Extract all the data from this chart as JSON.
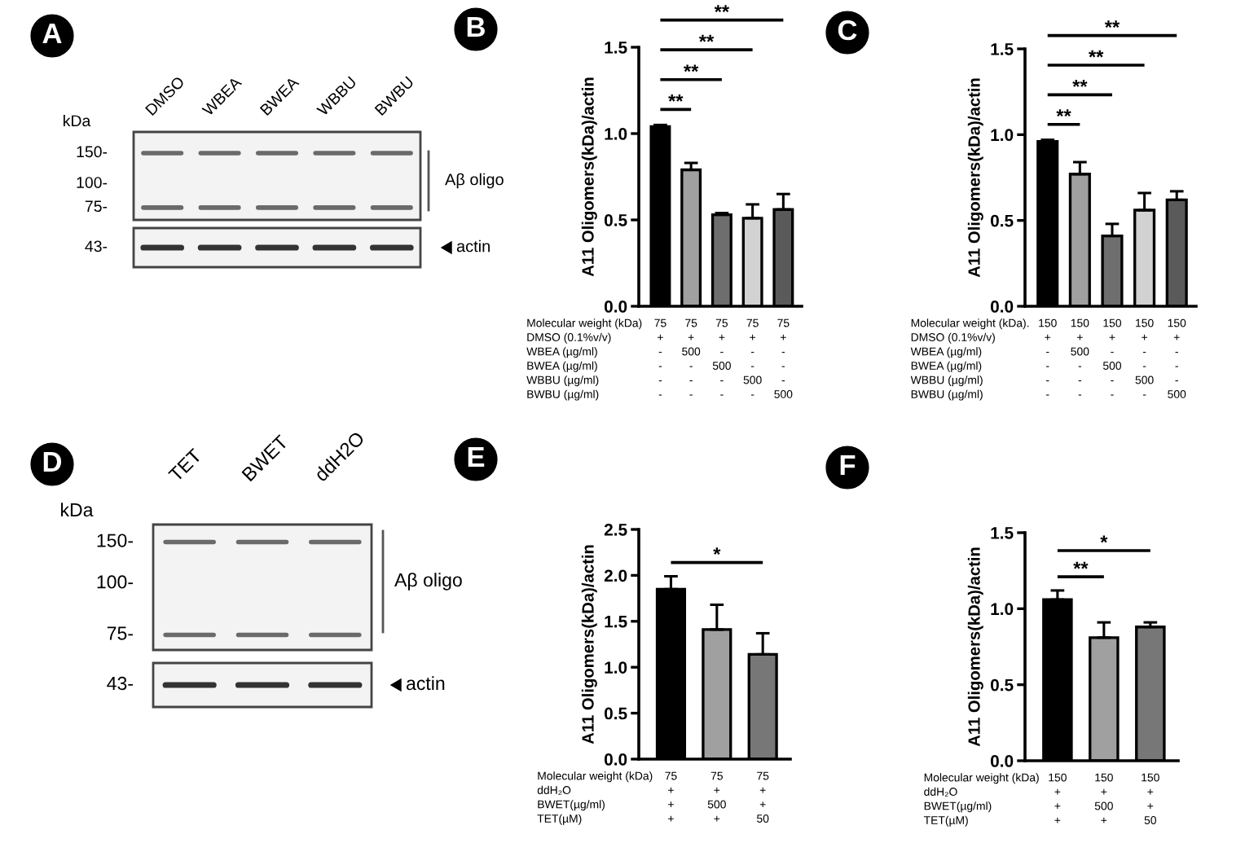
{
  "chart_data": [
    {
      "type": "other",
      "title": "A",
      "categories": [
        "DMSO",
        "WBEA",
        "BWEA",
        "WBBU",
        "BWBU"
      ],
      "annotations": [
        "kDa",
        "150-",
        "100-",
        "75-",
        "43-",
        "Aβ oligo",
        "actin"
      ]
    },
    {
      "type": "bar",
      "title": "B",
      "ylabel": "A11 Oligomers(kDa)/actin",
      "xlabel": "Molecular weight (kDa)\nDMSO (0.1%v/v)\nWBEA (µg/ml)\nBWEA (µg/ml)\nWBBU (µg/ml)\nBWBU (µg/ml)",
      "categories": [
        "75\n+\n-\n-\n-\n-",
        "75\n+\n500\n-\n-\n-",
        "75\n+\n-\n500\n-\n-",
        "75\n+\n-\n-\n500\n-",
        "75\n+\n-\n-\n-\n500"
      ],
      "values": [
        1.04,
        0.79,
        0.53,
        0.51,
        0.56
      ],
      "colors": [
        "#000000",
        "#a0a0a0",
        "#6e6e6e",
        "#d2d2d2",
        "#5a5a5a"
      ],
      "errors": [
        [
          1.04,
          1.05
        ],
        [
          0.79,
          0.83
        ],
        [
          0.53,
          0.54
        ],
        [
          0.51,
          0.59
        ],
        [
          0.56,
          0.65
        ]
      ],
      "ylim": [
        0,
        1.5
      ],
      "yticks": [
        {
          "value": 0,
          "label": "0.0"
        },
        0.5,
        {
          "value": 1,
          "label": "1.0"
        },
        1.5
      ],
      "annotations": [
        "**",
        "**",
        "**",
        "**"
      ]
    },
    {
      "type": "bar",
      "title": "C",
      "ylabel": "A11 Oligomers(kDa)/actin",
      "xlabel": "Molecular weight (kDa).\nDMSO (0.1%v/v)\nWBEA (µg/ml)\nBWEA (µg/ml)\nWBBU (µg/ml)\nBWBU (µg/ml)",
      "categories": [
        "150\n+\n-\n-\n-\n-",
        "150\n+\n500\n-\n-\n-",
        "150\n+\n-\n500\n-\n-",
        "150\n+\n-\n-\n500\n-",
        "150\n+\n-\n-\n-\n500"
      ],
      "values": [
        0.96,
        0.77,
        0.41,
        0.56,
        0.62
      ],
      "colors": [
        "#000000",
        "#a0a0a0",
        "#6e6e6e",
        "#d2d2d2",
        "#5a5a5a"
      ],
      "errors": [
        [
          0.96,
          0.97
        ],
        [
          0.77,
          0.84
        ],
        [
          0.41,
          0.48
        ],
        [
          0.56,
          0.66
        ],
        [
          0.62,
          0.67
        ]
      ],
      "ylim": [
        0,
        1.5
      ],
      "yticks": [
        {
          "value": 0,
          "label": "0.0"
        },
        0.5,
        {
          "value": 1,
          "label": "1.0"
        },
        1.5
      ],
      "annotations": [
        "**",
        "**",
        "**",
        "**"
      ]
    },
    {
      "type": "other",
      "title": "D",
      "categories": [
        "TET",
        "BWET",
        "ddH2O"
      ],
      "annotations": [
        "kDa",
        "150-",
        "100-",
        "75-",
        "43-",
        "Aβ oligo",
        "actin"
      ]
    },
    {
      "type": "bar",
      "title": "E",
      "ylabel": "A11 Oligomers(kDa)/actin",
      "xlabel": "Molecular weight (kDa)\nddH₂O\nBWET(µg/ml)\nTET(µM)",
      "categories": [
        "75\n+\n+\n+",
        "75\n+\n500\n+",
        "75\n+\n+\n50"
      ],
      "values": [
        1.85,
        1.41,
        1.14
      ],
      "colors": [
        "#000000",
        "#a0a0a0",
        "#777777"
      ],
      "errors": [
        [
          1.85,
          1.99
        ],
        [
          1.41,
          1.68
        ],
        [
          1.14,
          1.37
        ]
      ],
      "ylim": [
        0,
        2.5
      ],
      "yticks": [
        {
          "value": 0,
          "label": "0.0"
        },
        0.5,
        {
          "value": 1,
          "label": "1.0"
        },
        1.5,
        {
          "value": 2,
          "label": "2.0"
        },
        2.5
      ],
      "annotations": [
        "*"
      ]
    },
    {
      "type": "bar",
      "title": "F",
      "ylabel": "A11 Oligomers(kDa)/actin",
      "xlabel": "Molecular weight (kDa)\nddH₂O\nBWET(µg/ml)\nTET(µM)",
      "categories": [
        "150\n+\n+\n+",
        "150\n+\n500\n+",
        "150\n+\n+\n50"
      ],
      "values": [
        1.06,
        0.81,
        0.88
      ],
      "colors": [
        "#000000",
        "#a0a0a0",
        "#777777"
      ],
      "errors": [
        [
          1.06,
          1.12
        ],
        [
          0.81,
          0.91
        ],
        [
          0.88,
          0.91
        ]
      ],
      "ylim": [
        0,
        1.5
      ],
      "yticks": [
        {
          "value": 0,
          "label": "0.0"
        },
        0.5,
        {
          "value": 1,
          "label": "1.0"
        },
        1.5
      ],
      "annotations": [
        "**",
        "*"
      ]
    }
  ]
}
